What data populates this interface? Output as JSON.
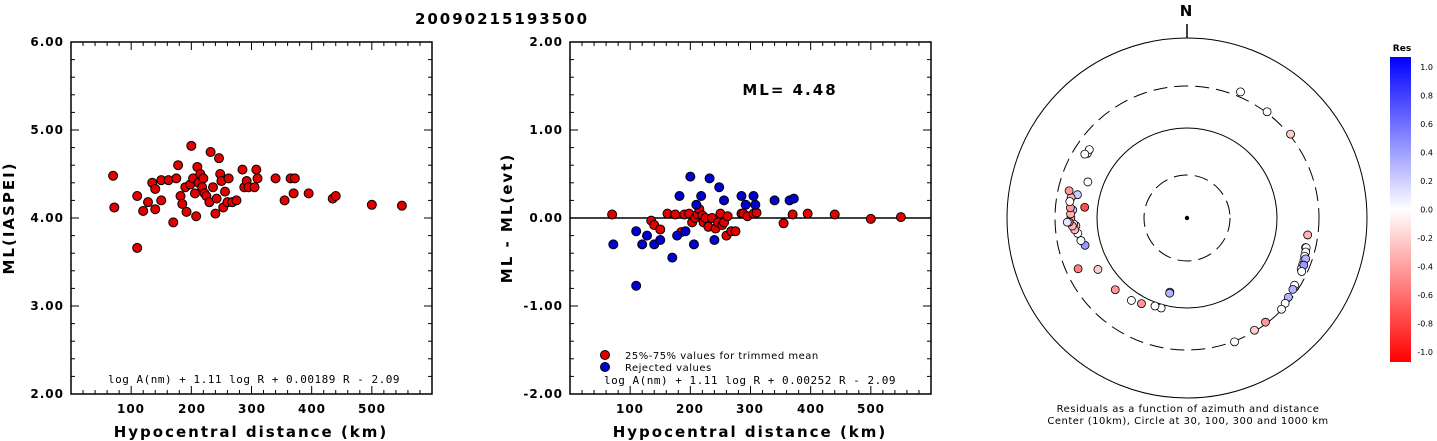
{
  "page_title": "20090215193500",
  "chart_data": [
    {
      "type": "scatter",
      "xlabel": "Hypocentral distance (km)",
      "ylabel": "ML(IASPEI)",
      "xlim": [
        0,
        600
      ],
      "ylim": [
        2.0,
        6.0
      ],
      "xticks": [
        "100",
        "200",
        "300",
        "400",
        "500"
      ],
      "yticks": [
        "2.00",
        "3.00",
        "4.00",
        "5.00",
        "6.00"
      ],
      "annotation": "log A(nm) + 1.11 log R + 0.00189 R - 2.09",
      "series": [
        {
          "color": "#e00000",
          "points": [
            [
              70,
              4.48
            ],
            [
              72,
              4.12
            ],
            [
              110,
              3.66
            ],
            [
              110,
              4.25
            ],
            [
              120,
              4.08
            ],
            [
              128,
              4.18
            ],
            [
              135,
              4.4
            ],
            [
              140,
              4.1
            ],
            [
              140,
              4.33
            ],
            [
              150,
              4.43
            ],
            [
              150,
              4.2
            ],
            [
              162,
              4.43
            ],
            [
              170,
              3.95
            ],
            [
              175,
              4.45
            ],
            [
              178,
              4.6
            ],
            [
              182,
              4.25
            ],
            [
              185,
              4.16
            ],
            [
              190,
              4.35
            ],
            [
              192,
              4.07
            ],
            [
              198,
              4.38
            ],
            [
              200,
              4.82
            ],
            [
              203,
              4.45
            ],
            [
              206,
              4.28
            ],
            [
              208,
              4.02
            ],
            [
              210,
              4.58
            ],
            [
              212,
              4.4
            ],
            [
              215,
              4.5
            ],
            [
              218,
              4.35
            ],
            [
              220,
              4.45
            ],
            [
              222,
              4.28
            ],
            [
              225,
              4.25
            ],
            [
              230,
              4.18
            ],
            [
              232,
              4.75
            ],
            [
              236,
              4.35
            ],
            [
              240,
              4.05
            ],
            [
              242,
              4.22
            ],
            [
              246,
              4.68
            ],
            [
              248,
              4.5
            ],
            [
              250,
              4.42
            ],
            [
              253,
              4.12
            ],
            [
              256,
              4.3
            ],
            [
              260,
              4.18
            ],
            [
              262,
              4.45
            ],
            [
              268,
              4.18
            ],
            [
              275,
              4.2
            ],
            [
              285,
              4.55
            ],
            [
              288,
              4.35
            ],
            [
              292,
              4.42
            ],
            [
              295,
              4.35
            ],
            [
              305,
              4.35
            ],
            [
              308,
              4.55
            ],
            [
              310,
              4.45
            ],
            [
              340,
              4.45
            ],
            [
              355,
              4.2
            ],
            [
              365,
              4.45
            ],
            [
              370,
              4.28
            ],
            [
              372,
              4.45
            ],
            [
              395,
              4.28
            ],
            [
              435,
              4.22
            ],
            [
              440,
              4.25
            ],
            [
              500,
              4.15
            ],
            [
              550,
              4.14
            ]
          ]
        }
      ]
    },
    {
      "type": "scatter",
      "xlabel": "Hypocentral distance (km)",
      "ylabel": "ML - ML(evt)",
      "xlim": [
        0,
        600
      ],
      "ylim": [
        -2.0,
        2.0
      ],
      "xticks": [
        "100",
        "200",
        "300",
        "400",
        "500"
      ],
      "yticks": [
        "-2.00",
        "-1.00",
        "0.00",
        "1.00",
        "2.00"
      ],
      "reference_line_y": 0,
      "ml_label": "ML= 4.48",
      "annotation": "log A(nm) + 1.11 log R + 0.00252 R - 2.09",
      "legend": [
        "25%-75% values for trimmed mean",
        "Rejected values"
      ],
      "series": [
        {
          "name": "25%-75% values for trimmed mean",
          "color": "#e00000",
          "points": [
            [
              70,
              0.04
            ],
            [
              135,
              -0.03
            ],
            [
              140,
              -0.08
            ],
            [
              150,
              -0.13
            ],
            [
              162,
              0.05
            ],
            [
              175,
              0.04
            ],
            [
              185,
              -0.16
            ],
            [
              190,
              0.04
            ],
            [
              198,
              0.05
            ],
            [
              203,
              -0.05
            ],
            [
              208,
              0.0
            ],
            [
              212,
              0.04
            ],
            [
              215,
              0.1
            ],
            [
              220,
              0.03
            ],
            [
              222,
              -0.05
            ],
            [
              225,
              0.0
            ],
            [
              230,
              -0.1
            ],
            [
              236,
              0.0
            ],
            [
              242,
              -0.12
            ],
            [
              246,
              -0.05
            ],
            [
              250,
              0.05
            ],
            [
              253,
              -0.08
            ],
            [
              256,
              -0.05
            ],
            [
              260,
              -0.2
            ],
            [
              262,
              0.02
            ],
            [
              268,
              -0.15
            ],
            [
              275,
              -0.15
            ],
            [
              285,
              0.05
            ],
            [
              288,
              0.05
            ],
            [
              295,
              0.02
            ],
            [
              305,
              0.05
            ],
            [
              310,
              0.06
            ],
            [
              355,
              -0.06
            ],
            [
              370,
              0.04
            ],
            [
              395,
              0.05
            ],
            [
              440,
              0.04
            ],
            [
              500,
              -0.01
            ],
            [
              550,
              0.01
            ]
          ]
        },
        {
          "name": "Rejected values",
          "color": "#0000d0",
          "points": [
            [
              72,
              -0.3
            ],
            [
              110,
              -0.15
            ],
            [
              110,
              -0.77
            ],
            [
              120,
              -0.3
            ],
            [
              128,
              -0.2
            ],
            [
              140,
              -0.3
            ],
            [
              150,
              -0.25
            ],
            [
              170,
              -0.45
            ],
            [
              178,
              -0.2
            ],
            [
              182,
              0.25
            ],
            [
              192,
              -0.15
            ],
            [
              200,
              0.47
            ],
            [
              206,
              -0.3
            ],
            [
              210,
              0.15
            ],
            [
              218,
              0.25
            ],
            [
              232,
              0.45
            ],
            [
              240,
              -0.25
            ],
            [
              248,
              0.35
            ],
            [
              256,
              0.2
            ],
            [
              285,
              0.25
            ],
            [
              292,
              0.15
            ],
            [
              305,
              0.25
            ],
            [
              308,
              0.15
            ],
            [
              340,
              0.2
            ],
            [
              365,
              0.2
            ],
            [
              372,
              0.22
            ]
          ]
        }
      ]
    },
    {
      "type": "scatter",
      "north_label": "N",
      "caption_line1": "Residuals as a function of azimuth and distance",
      "caption_line2": "Center (10km), Circle at 30, 100, 300 and 1000 km",
      "colorbar_title": "Res",
      "colorbar_ticks": [
        "1.0",
        "0.8",
        "0.6",
        "0.4",
        "0.2",
        "0.0",
        "-0.2",
        "-0.4",
        "-0.6",
        "-0.8",
        "-1.0"
      ],
      "stations": [
        [
          193,
          0.3
        ],
        [
          193,
          0.3
        ],
        [
          196,
          0.0
        ],
        [
          200,
          0.0
        ],
        [
          208,
          -0.4
        ],
        [
          214,
          0.0
        ],
        [
          225,
          -0.4
        ],
        [
          240,
          -0.2
        ],
        [
          276,
          -0.7
        ],
        [
          290,
          0.0
        ],
        [
          255,
          0.4
        ],
        [
          258,
          0.0
        ],
        [
          262,
          0.0
        ],
        [
          266,
          -0.2
        ],
        [
          282,
          0.2
        ],
        [
          264,
          -0.3
        ],
        [
          267,
          0.1
        ],
        [
          274,
          0.2
        ],
        [
          266,
          -0.3
        ],
        [
          270,
          -0.4
        ],
        [
          272,
          -0.3
        ],
        [
          275,
          -0.4
        ],
        [
          280,
          -0.3
        ],
        [
          268,
          -0.4
        ],
        [
          278,
          0.0
        ],
        [
          303,
          0.0
        ],
        [
          305,
          0.0
        ],
        [
          268,
          0.1
        ],
        [
          245,
          -0.5
        ],
        [
          302,
          0.0
        ],
        [
          283,
          -0.4
        ],
        [
          98,
          -0.3
        ],
        [
          104,
          0.0
        ],
        [
          104,
          0.0
        ],
        [
          106,
          0.0
        ],
        [
          108,
          0.0
        ],
        [
          110,
          0.0
        ],
        [
          112,
          0.0
        ],
        [
          114,
          0.0
        ],
        [
          109,
          0.3
        ],
        [
          112,
          0.4
        ],
        [
          115,
          0.0
        ],
        [
          122,
          0.0
        ],
        [
          124,
          0.3
        ],
        [
          128,
          0.3
        ],
        [
          131,
          0.0
        ],
        [
          143,
          -0.4
        ],
        [
          149,
          -0.2
        ],
        [
          134,
          0.0
        ],
        [
          159,
          0.0
        ],
        [
          37,
          0.0
        ],
        [
          51,
          -0.2
        ],
        [
          23,
          0.0
        ]
      ]
    }
  ]
}
